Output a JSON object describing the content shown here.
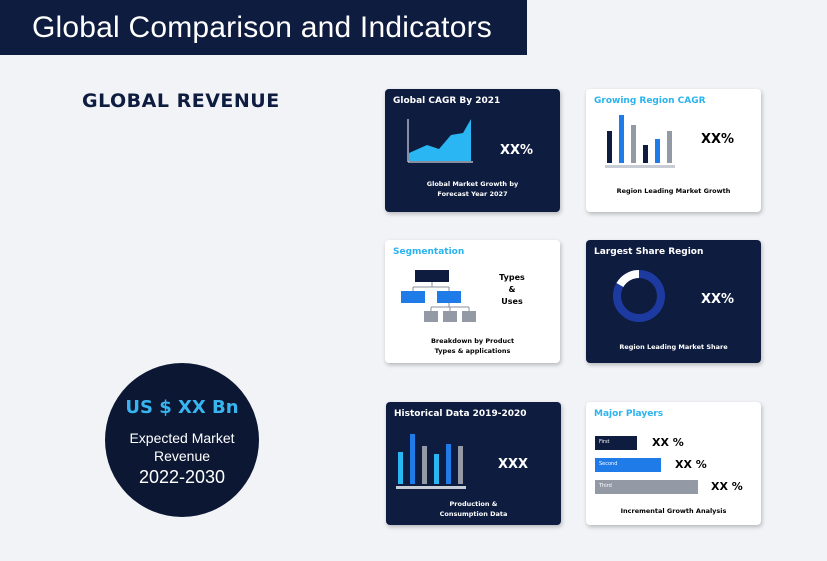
{
  "header": {
    "title": "Global Comparison and Indicators"
  },
  "section": {
    "label": "GLOBAL REVENUE"
  },
  "revenue": {
    "amount": "US $ XX Bn",
    "label_line1": "Expected Market",
    "label_line2": "Revenue",
    "years": "2022-2030"
  },
  "cards": {
    "cagr": {
      "title": "Global CAGR By 2021",
      "value": "XX%",
      "caption_line1": "Global Market Growth by",
      "caption_line2": "Forecast Year 2027"
    },
    "growing": {
      "title": "Growing Region CAGR",
      "value": "XX%",
      "caption": "Region Leading Market Growth"
    },
    "segmentation": {
      "title": "Segmentation",
      "types_line1": "Types",
      "types_line2": "&",
      "types_line3": "Uses",
      "caption_line1": "Breakdown by Product",
      "caption_line2": "Types & applications"
    },
    "largest": {
      "title": "Largest Share Region",
      "value": "XX%",
      "caption": "Region Leading Market Share"
    },
    "historical": {
      "title": "Historical Data 2019-2020",
      "value": "XXX",
      "caption_line1": "Production &",
      "caption_line2": "Consumption Data"
    },
    "players": {
      "title": "Major Players",
      "caption": "Incremental Growth Analysis",
      "bars": [
        {
          "label": "First",
          "value": "XX %",
          "color": "#0e1c3f"
        },
        {
          "label": "Second",
          "value": "XX %",
          "color": "#1e7be8"
        },
        {
          "label": "Third",
          "value": "XX %",
          "color": "#9499a6"
        }
      ]
    }
  },
  "colors": {
    "navy": "#0e1c3f",
    "cyan": "#2bb3ee",
    "blue": "#1e7be8",
    "gray": "#9499a6"
  }
}
